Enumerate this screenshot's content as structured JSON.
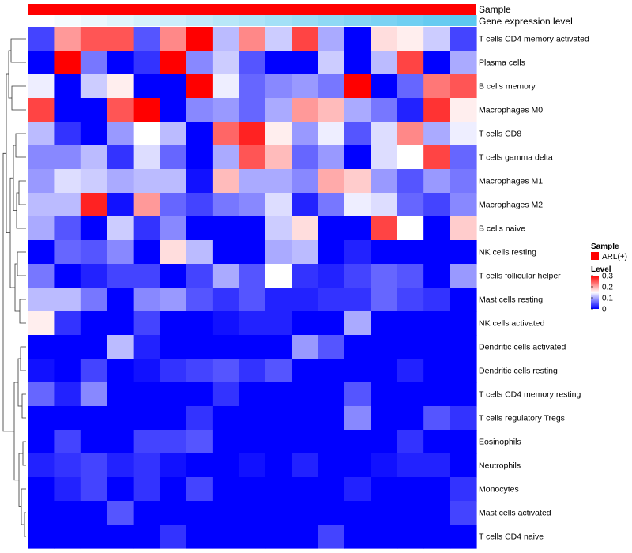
{
  "chart_data": {
    "type": "heatmap",
    "annotation_labels": [
      "Sample",
      "Gene expression level"
    ],
    "rows": [
      "T cells CD4 memory activated",
      "Plasma cells",
      "B cells memory",
      "Macrophages M0",
      "T cells CD8",
      "T cells gamma delta",
      "Macrophages M1",
      "Macrophages M2",
      "B cells naive",
      "NK cells resting",
      "T cells follicular helper",
      "Mast cells resting",
      "NK cells activated",
      "Dendritic cells activated",
      "Dendritic cells resting",
      "T cells CD4 memory resting",
      "T cells regulatory  Tregs",
      "Eosinophils",
      "Neutrophils",
      "Monocytes",
      "Mast cells activated",
      "T cells CD4 naive"
    ],
    "values": [
      [
        0.04,
        0.21,
        0.25,
        0.25,
        0.05,
        0.22,
        0.3,
        0.11,
        0.22,
        0.12,
        0.26,
        0.1,
        0.0,
        0.17,
        0.16,
        0.12,
        0.04
      ],
      [
        0.0,
        0.3,
        0.07,
        0.0,
        0.03,
        0.3,
        0.08,
        0.12,
        0.05,
        0.0,
        0.0,
        0.12,
        0.0,
        0.11,
        0.26,
        0.0,
        0.1
      ],
      [
        0.14,
        0.0,
        0.12,
        0.16,
        0.0,
        0.0,
        0.3,
        0.14,
        0.06,
        0.08,
        0.09,
        0.07,
        0.3,
        0.0,
        0.06,
        0.23,
        0.25
      ],
      [
        0.26,
        0.0,
        0.0,
        0.25,
        0.3,
        0.0,
        0.08,
        0.09,
        0.06,
        0.1,
        0.21,
        0.19,
        0.1,
        0.07,
        0.02,
        0.27,
        0.16
      ],
      [
        0.11,
        0.03,
        0.0,
        0.09,
        0.15,
        0.11,
        0.0,
        0.24,
        0.28,
        0.16,
        0.09,
        0.14,
        0.05,
        0.13,
        0.22,
        0.1,
        0.14
      ],
      [
        0.08,
        0.08,
        0.11,
        0.03,
        0.13,
        0.06,
        0.0,
        0.1,
        0.25,
        0.19,
        0.06,
        0.09,
        0.0,
        0.13,
        0.15,
        0.26,
        0.06
      ],
      [
        0.09,
        0.13,
        0.12,
        0.1,
        0.11,
        0.11,
        0.01,
        0.19,
        0.1,
        0.1,
        0.08,
        0.2,
        0.18,
        0.09,
        0.05,
        0.09,
        0.07
      ],
      [
        0.11,
        0.11,
        0.28,
        0.01,
        0.21,
        0.06,
        0.04,
        0.07,
        0.08,
        0.13,
        0.02,
        0.07,
        0.14,
        0.13,
        0.06,
        0.04,
        0.08
      ],
      [
        0.1,
        0.05,
        0.0,
        0.12,
        0.03,
        0.08,
        0.0,
        0.0,
        0.0,
        0.12,
        0.17,
        0.0,
        0.0,
        0.26,
        0.15,
        0.0,
        0.18
      ],
      [
        0.0,
        0.06,
        0.05,
        0.08,
        0.0,
        0.17,
        0.11,
        0.0,
        0.0,
        0.1,
        0.11,
        0.0,
        0.02,
        0.0,
        0.0,
        0.0,
        0.0
      ],
      [
        0.07,
        0.0,
        0.02,
        0.04,
        0.04,
        0.0,
        0.04,
        0.1,
        0.05,
        0.15,
        0.03,
        0.02,
        0.04,
        0.06,
        0.05,
        0.0,
        0.09
      ],
      [
        0.11,
        0.11,
        0.07,
        0.0,
        0.08,
        0.09,
        0.05,
        0.03,
        0.05,
        0.02,
        0.02,
        0.03,
        0.03,
        0.06,
        0.04,
        0.03,
        0.0
      ],
      [
        0.16,
        0.03,
        0.0,
        0.0,
        0.04,
        0.0,
        0.0,
        0.01,
        0.02,
        0.02,
        0.0,
        0.0,
        0.1,
        0.0,
        0.0,
        0.0,
        0.0
      ],
      [
        0.0,
        0.0,
        0.0,
        0.11,
        0.02,
        0.0,
        0.0,
        0.0,
        0.0,
        0.0,
        0.09,
        0.05,
        0.0,
        0.0,
        0.0,
        0.0,
        0.0
      ],
      [
        0.01,
        0.0,
        0.04,
        0.0,
        0.01,
        0.03,
        0.04,
        0.05,
        0.03,
        0.05,
        0.0,
        0.0,
        0.0,
        0.0,
        0.02,
        0.0,
        0.0
      ],
      [
        0.06,
        0.02,
        0.08,
        0.0,
        0.0,
        0.0,
        0.0,
        0.03,
        0.0,
        0.0,
        0.0,
        0.0,
        0.05,
        0.0,
        0.0,
        0.0,
        0.0
      ],
      [
        0.0,
        0.0,
        0.0,
        0.0,
        0.0,
        0.0,
        0.03,
        0.0,
        0.0,
        0.0,
        0.0,
        0.0,
        0.08,
        0.0,
        0.0,
        0.05,
        0.03
      ],
      [
        0.0,
        0.04,
        0.0,
        0.0,
        0.04,
        0.04,
        0.05,
        0.0,
        0.0,
        0.0,
        0.0,
        0.0,
        0.0,
        0.0,
        0.03,
        0.0,
        0.0
      ],
      [
        0.02,
        0.03,
        0.04,
        0.02,
        0.03,
        0.01,
        0.0,
        0.0,
        0.01,
        0.0,
        0.02,
        0.0,
        0.0,
        0.01,
        0.02,
        0.02,
        0.0
      ],
      [
        0.0,
        0.02,
        0.04,
        0.0,
        0.03,
        0.0,
        0.04,
        0.0,
        0.0,
        0.0,
        0.0,
        0.0,
        0.02,
        0.0,
        0.0,
        0.0,
        0.03
      ],
      [
        0.0,
        0.0,
        0.0,
        0.05,
        0.0,
        0.0,
        0.0,
        0.0,
        0.0,
        0.0,
        0.0,
        0.0,
        0.0,
        0.0,
        0.0,
        0.0,
        0.04
      ],
      [
        0.0,
        0.0,
        0.0,
        0.0,
        0.0,
        0.03,
        0.0,
        0.0,
        0.0,
        0.0,
        0.0,
        0.04,
        0.0,
        0.0,
        0.0,
        0.0,
        0.0
      ]
    ],
    "expression_levels": [
      0.0,
      0.01,
      0.02,
      0.03,
      0.04,
      0.05,
      0.06,
      0.07,
      0.08,
      0.09,
      0.1,
      0.11,
      0.12,
      0.13,
      0.14,
      0.15,
      0.16
    ],
    "color_scale": {
      "min": 0,
      "mid": 0.15,
      "max": 0.3,
      "low": "#0000ff",
      "mid_color": "#ffffff",
      "high": "#ff0000"
    },
    "legend": {
      "sample_title": "Sample",
      "sample_entry": "ARL(+)",
      "sample_color": "#ff0000",
      "level_title": "Level",
      "level_ticks": [
        0.3,
        0.2,
        0.1,
        0
      ],
      "level_tick_labels": [
        "0.3",
        "0.2",
        "0.1",
        "0"
      ]
    }
  }
}
